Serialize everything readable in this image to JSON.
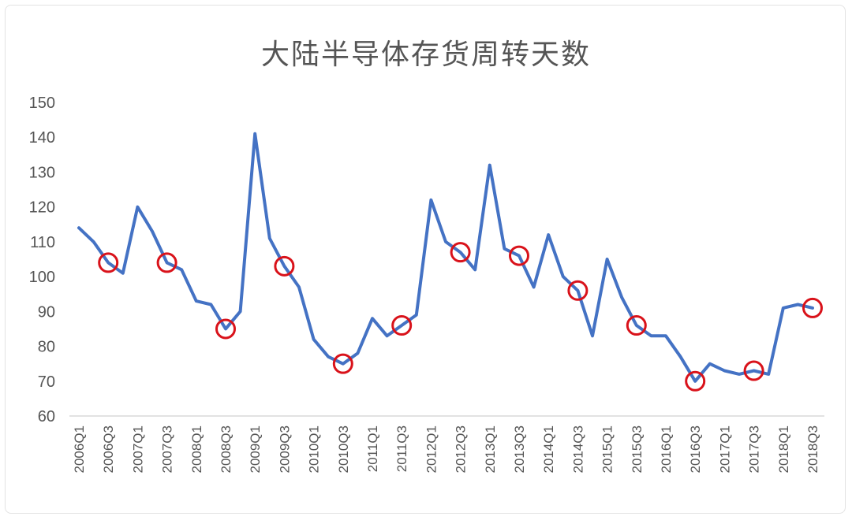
{
  "chart_data": {
    "type": "line",
    "title": "大陆半导体存货周转天数",
    "ylim": [
      60,
      150
    ],
    "yticks": [
      60,
      70,
      80,
      90,
      100,
      110,
      120,
      130,
      140,
      150
    ],
    "grid": false,
    "x": [
      "2006Q1",
      "2006Q2",
      "2006Q3",
      "2006Q4",
      "2007Q1",
      "2007Q2",
      "2007Q3",
      "2007Q4",
      "2008Q1",
      "2008Q2",
      "2008Q3",
      "2008Q4",
      "2009Q1",
      "2009Q2",
      "2009Q3",
      "2009Q4",
      "2010Q1",
      "2010Q2",
      "2010Q3",
      "2010Q4",
      "2011Q1",
      "2011Q2",
      "2011Q3",
      "2011Q4",
      "2012Q1",
      "2012Q2",
      "2012Q3",
      "2012Q4",
      "2013Q1",
      "2013Q2",
      "2013Q3",
      "2013Q4",
      "2014Q1",
      "2014Q2",
      "2014Q3",
      "2014Q4",
      "2015Q1",
      "2015Q2",
      "2015Q3",
      "2015Q4",
      "2016Q1",
      "2016Q2",
      "2016Q3",
      "2016Q4",
      "2017Q1",
      "2017Q2",
      "2017Q3",
      "2017Q4",
      "2018Q1",
      "2018Q2",
      "2018Q3"
    ],
    "xtick_labels": [
      "2006Q1",
      "2006Q3",
      "2007Q1",
      "2007Q3",
      "2008Q1",
      "2008Q3",
      "2009Q1",
      "2009Q3",
      "2010Q1",
      "2010Q3",
      "2011Q1",
      "2011Q3",
      "2012Q1",
      "2012Q3",
      "2013Q1",
      "2013Q3",
      "2014Q1",
      "2014Q3",
      "2015Q1",
      "2015Q3",
      "2016Q1",
      "2016Q3",
      "2017Q1",
      "2017Q3",
      "2018Q1",
      "2018Q3"
    ],
    "series": [
      {
        "color": "#4472c4",
        "values": [
          114,
          110,
          104,
          101,
          120,
          113,
          104,
          102,
          93,
          92,
          85,
          90,
          141,
          111,
          103,
          97,
          82,
          77,
          75,
          78,
          88,
          83,
          86,
          89,
          122,
          110,
          107,
          102,
          132,
          108,
          106,
          97,
          112,
          100,
          96,
          83,
          105,
          94,
          86,
          83,
          83,
          77,
          70,
          75,
          73,
          72,
          73,
          72,
          91,
          92,
          91
        ]
      }
    ],
    "highlighted_points": {
      "color": "#d9121a",
      "indices": [
        2,
        6,
        10,
        14,
        18,
        22,
        26,
        30,
        34,
        38,
        42,
        46,
        50
      ]
    }
  }
}
